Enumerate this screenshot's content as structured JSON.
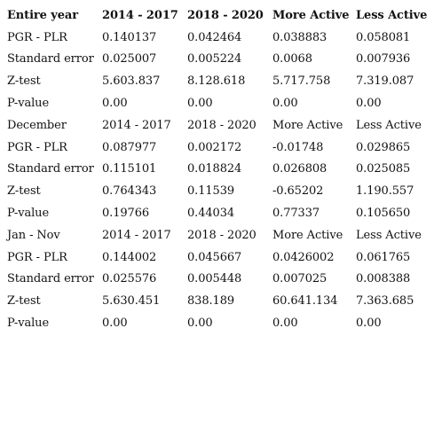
{
  "sections": [
    {
      "header": [
        "Entire year",
        "2014 - 2017",
        "2018 - 2020",
        "More Active",
        "Less Active"
      ],
      "rows": [
        [
          "PGR - PLR",
          "0.140137",
          "0.042464",
          "0.038883",
          "0.058081"
        ],
        [
          "Standard error",
          "0.025007",
          "0.005224",
          "0.0068",
          "0.007936"
        ],
        [
          "Z-test",
          "5.603.837",
          "8.128.618",
          "5.717.758",
          "7.319.087"
        ],
        [
          "P-value",
          "0.00",
          "0.00",
          "0.00",
          "0.00"
        ]
      ]
    },
    {
      "header": [
        "December",
        "2014 - 2017",
        "2018 - 2020",
        "More Active",
        "Less Active"
      ],
      "rows": [
        [
          "PGR - PLR",
          "0.087977",
          "0.002172",
          "-0.01748",
          "0.029865"
        ],
        [
          "Standard error",
          "0.115101",
          "0.018824",
          "0.026808",
          "0.025085"
        ],
        [
          "Z-test",
          "0.764343",
          "0.11539",
          "-0.65202",
          "1.190.557"
        ],
        [
          "P-value",
          "0.19766",
          "0.44034",
          "0.77337",
          "0.105650"
        ]
      ]
    },
    {
      "header": [
        "Jan - Nov",
        "2014 - 2017",
        "2018 - 2020",
        "More Active",
        "Less Active"
      ],
      "rows": [
        [
          "PGR - PLR",
          "0.144002",
          "0.045667",
          "0.0426002",
          "0.061765"
        ],
        [
          "Standard error",
          "0.025576",
          "0.005448",
          "0.007025",
          "0.008388"
        ],
        [
          "Z-test",
          "5.630.451",
          "838.189",
          "60.641.134",
          "7.363.685"
        ],
        [
          "P-value",
          "0.00",
          "0.00",
          "0.00",
          "0.00"
        ]
      ]
    }
  ]
}
